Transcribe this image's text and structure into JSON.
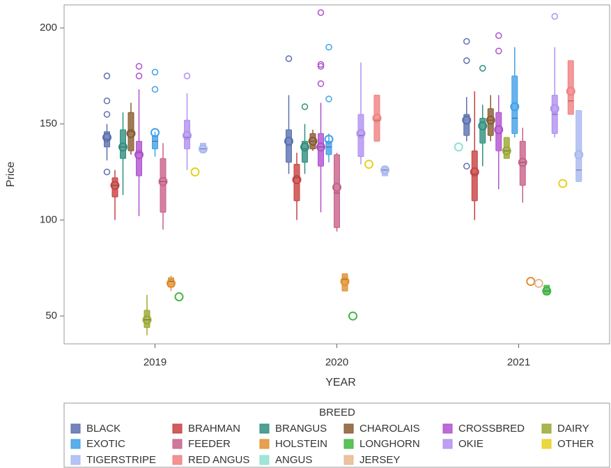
{
  "chart_data": {
    "type": "box",
    "x_label": "YEAR",
    "y_label": "Price",
    "legend_title": "BREED",
    "categories": [
      "2019",
      "2020",
      "2021"
    ],
    "ylim": [
      35.5,
      212
    ],
    "yticks": [
      50,
      100,
      150,
      200
    ],
    "series": [
      {
        "name": "BLACK",
        "color": "#5a6fb0",
        "stats": [
          {
            "whisker_low": 131,
            "q1": 138,
            "median": 142,
            "q3": 146,
            "whisker_high": 150,
            "mean": 143,
            "outliers": [
              175,
              162,
              155,
              125
            ]
          },
          {
            "whisker_low": 124,
            "q1": 130,
            "median": 139,
            "q3": 147,
            "whisker_high": 165,
            "mean": 141,
            "outliers": [
              184
            ]
          },
          {
            "whisker_low": 141,
            "q1": 144,
            "median": 150,
            "q3": 155,
            "whisker_high": 164,
            "mean": 152,
            "outliers": [
              193,
              183,
              128
            ]
          }
        ]
      },
      {
        "name": "BRAHMAN",
        "color": "#c84040",
        "stats": [
          {
            "whisker_low": 100,
            "q1": 112,
            "median": 118,
            "q3": 122,
            "whisker_high": 126,
            "mean": 118,
            "outliers": []
          },
          {
            "whisker_low": 100,
            "q1": 110,
            "median": 122,
            "q3": 129,
            "whisker_high": 135,
            "mean": 121,
            "outliers": []
          },
          {
            "whisker_low": 100,
            "q1": 110,
            "median": 124,
            "q3": 136,
            "whisker_high": 167,
            "mean": 125,
            "outliers": []
          }
        ]
      },
      {
        "name": "BRANGUS",
        "color": "#2f8f80",
        "stats": [
          {
            "whisker_low": 113,
            "q1": 132,
            "median": 138,
            "q3": 147,
            "whisker_high": 156,
            "mean": 138,
            "outliers": []
          },
          {
            "whisker_low": 124,
            "q1": 130,
            "median": 137,
            "q3": 141,
            "whisker_high": 150,
            "mean": 138,
            "outliers": [
              159
            ]
          },
          {
            "whisker_low": 128,
            "q1": 140,
            "median": 147,
            "q3": 153,
            "whisker_high": 160,
            "mean": 149,
            "outliers": [
              179
            ]
          }
        ]
      },
      {
        "name": "CHAROLAIS",
        "color": "#8a5a30",
        "stats": [
          {
            "whisker_low": 134,
            "q1": 136,
            "median": 146,
            "q3": 156,
            "whisker_high": 161,
            "mean": 145,
            "outliers": []
          },
          {
            "whisker_low": 136,
            "q1": 137,
            "median": 141,
            "q3": 145,
            "whisker_high": 147,
            "mean": 141,
            "outliers": []
          },
          {
            "whisker_low": 141,
            "q1": 144,
            "median": 152,
            "q3": 158,
            "whisker_high": 165,
            "mean": 152,
            "outliers": []
          }
        ]
      },
      {
        "name": "CROSSBRED",
        "color": "#b050d0",
        "stats": [
          {
            "whisker_low": 102,
            "q1": 123,
            "median": 135,
            "q3": 141,
            "whisker_high": 168,
            "mean": 134,
            "outliers": [
              180,
              175
            ]
          },
          {
            "whisker_low": 104,
            "q1": 128,
            "median": 138,
            "q3": 145,
            "whisker_high": 161,
            "mean": 138,
            "outliers": [
              208,
              181,
              180,
              171
            ]
          },
          {
            "whisker_low": 116,
            "q1": 136,
            "median": 145,
            "q3": 156,
            "whisker_high": 165,
            "mean": 147,
            "outliers": [
              196,
              188
            ]
          }
        ]
      },
      {
        "name": "DAIRY",
        "color": "#9aa830",
        "stats": [
          {
            "whisker_low": 40,
            "q1": 44,
            "median": 48,
            "q3": 53,
            "whisker_high": 61,
            "mean": 48,
            "outliers": []
          },
          null,
          {
            "whisker_low": 132,
            "q1": 132,
            "median": 136,
            "q3": 143,
            "whisker_high": 143,
            "mean": 136,
            "outliers": []
          }
        ]
      },
      {
        "name": "EXOTIC",
        "color": "#40a0e8",
        "stats": [
          {
            "whisker_low": 133,
            "q1": 137,
            "median": 141,
            "q3": 144,
            "whisker_high": 146,
            "mean": 145.5,
            "outliers": [
              177,
              168
            ]
          },
          {
            "whisker_low": 130,
            "q1": 134,
            "median": 138,
            "q3": 141,
            "whisker_high": 145,
            "mean": 142,
            "outliers": [
              190,
              163
            ]
          },
          {
            "whisker_low": 143,
            "q1": 145,
            "median": 153,
            "q3": 175,
            "whisker_high": 190,
            "mean": 159,
            "outliers": []
          }
        ]
      },
      {
        "name": "FEEDER",
        "color": "#c8608a",
        "stats": [
          {
            "whisker_low": 95,
            "q1": 104,
            "median": 120,
            "q3": 132,
            "whisker_high": 140,
            "mean": 120,
            "outliers": []
          },
          {
            "whisker_low": 94,
            "q1": 96,
            "median": 114,
            "q3": 134,
            "whisker_high": 135,
            "mean": 117,
            "outliers": []
          },
          {
            "whisker_low": 109,
            "q1": 118,
            "median": 130,
            "q3": 141,
            "whisker_high": 148,
            "mean": 130,
            "outliers": []
          }
        ]
      },
      {
        "name": "HOLSTEIN",
        "color": "#e09030",
        "stats": [
          {
            "whisker_low": 63,
            "q1": 65,
            "median": 68,
            "q3": 70,
            "whisker_high": 71,
            "mean": 67,
            "outliers": []
          },
          {
            "whisker_low": 63,
            "q1": 63,
            "median": 69,
            "q3": 72,
            "whisker_high": 72,
            "mean": 68,
            "outliers": []
          },
          {
            "mean": 68
          }
        ]
      },
      {
        "name": "LONGHORN",
        "color": "#40b840",
        "stats": [
          {
            "mean": 60
          },
          {
            "mean": 50
          },
          {
            "whisker_low": 61,
            "q1": 61,
            "median": 63,
            "q3": 66,
            "whisker_high": 66,
            "mean": 63,
            "outliers": []
          }
        ]
      },
      {
        "name": "OKIE",
        "color": "#b090f0",
        "stats": [
          {
            "whisker_low": 126,
            "q1": 137,
            "median": 143,
            "q3": 152,
            "whisker_high": 166,
            "mean": 144,
            "outliers": [
              175
            ]
          },
          {
            "whisker_low": 129,
            "q1": 133,
            "median": 144,
            "q3": 155,
            "whisker_high": 182,
            "mean": 145,
            "outliers": []
          },
          {
            "whisker_low": 143,
            "q1": 145,
            "median": 155,
            "q3": 165,
            "whisker_high": 190,
            "mean": 158,
            "outliers": [
              206
            ]
          }
        ]
      },
      {
        "name": "OTHER",
        "color": "#e8d020",
        "stats": [
          {
            "mean": 125
          },
          {
            "mean": 129
          },
          {
            "mean": 119
          }
        ]
      },
      {
        "name": "TIGERSTRIPE",
        "color": "#a8b8f0",
        "stats": [
          {
            "whisker_low": 135,
            "q1": 135,
            "median": 137,
            "q3": 140,
            "whisker_high": 140,
            "mean": 137,
            "outliers": []
          },
          {
            "whisker_low": 123,
            "q1": 123,
            "median": 126,
            "q3": 128,
            "whisker_high": 128,
            "mean": 126,
            "outliers": []
          },
          {
            "whisker_low": 120,
            "q1": 120,
            "median": 126,
            "q3": 157,
            "whisker_high": 157,
            "mean": 134,
            "outliers": []
          }
        ]
      },
      {
        "name": "RED ANGUS",
        "color": "#f08080",
        "stats": [
          null,
          {
            "whisker_low": 141,
            "q1": 141,
            "median": 152,
            "q3": 165,
            "whisker_high": 165,
            "mean": 153,
            "outliers": []
          },
          {
            "whisker_low": 155,
            "q1": 155,
            "median": 162,
            "q3": 183,
            "whisker_high": 183,
            "mean": 167,
            "outliers": []
          }
        ]
      },
      {
        "name": "ANGUS",
        "color": "#90e0d0",
        "stats": [
          null,
          null,
          {
            "mean": 138
          }
        ]
      },
      {
        "name": "JERSEY",
        "color": "#e8b890",
        "stats": [
          null,
          null,
          {
            "mean": 67
          }
        ]
      }
    ]
  }
}
